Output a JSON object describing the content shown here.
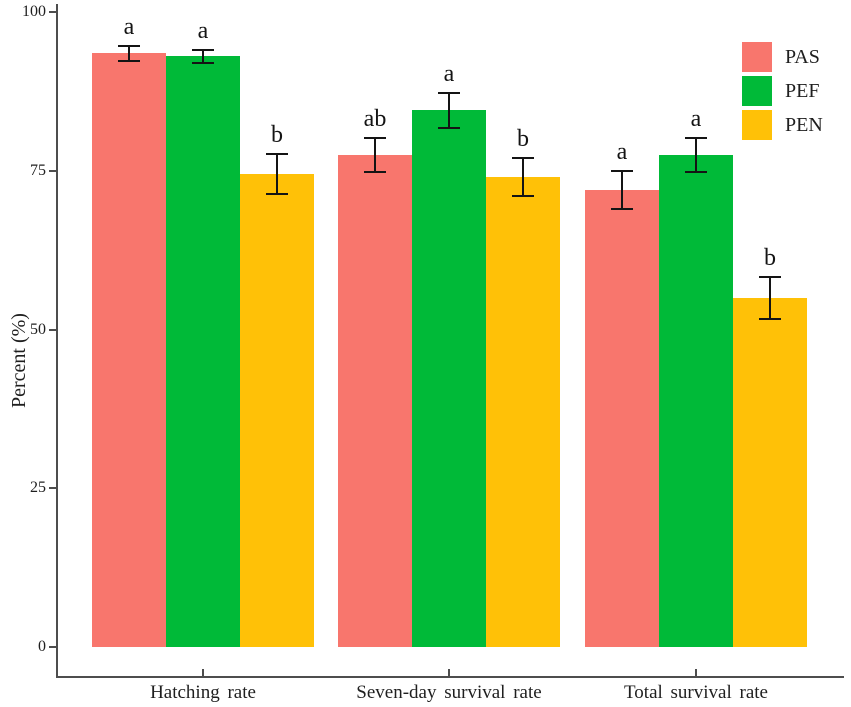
{
  "chart_data": {
    "type": "bar",
    "title": "",
    "xlabel": "",
    "ylabel": "Percent (%)",
    "categories": [
      "Hatching rate",
      "Seven-day survival rate",
      "Total survival rate"
    ],
    "series": [
      {
        "name": "PAS",
        "color": "#F8766D",
        "values": [
          93.5,
          77.5,
          72.0
        ],
        "errors": [
          1.2,
          2.7,
          3.0
        ],
        "letters": [
          "a",
          "ab",
          "a"
        ]
      },
      {
        "name": "PEF",
        "color": "#00BA38",
        "values": [
          93.0,
          84.5,
          77.5
        ],
        "errors": [
          1.0,
          2.7,
          2.7
        ],
        "letters": [
          "a",
          "a",
          "a"
        ]
      },
      {
        "name": "PEN",
        "color": "#FFC107",
        "values": [
          74.5,
          74.0,
          55.0
        ],
        "errors": [
          3.2,
          3.0,
          3.3
        ],
        "letters": [
          "b",
          "b",
          "b"
        ]
      }
    ],
    "yticks": [
      0,
      25,
      50,
      75,
      100
    ],
    "ylim": [
      0,
      105
    ],
    "grid": false,
    "error_bars": true,
    "significance_letters": true,
    "legend_position": "top-right"
  },
  "legend": {
    "items": [
      {
        "label": "PAS",
        "color": "#F8766D"
      },
      {
        "label": "PEF",
        "color": "#00BA38"
      },
      {
        "label": "PEN",
        "color": "#FFC107"
      }
    ]
  },
  "axis_colors": {
    "line": "#4d4d4d",
    "text": "#1f1f1f",
    "error_bar": "#141414"
  }
}
